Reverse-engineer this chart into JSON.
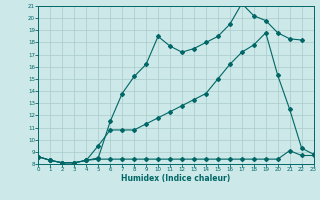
{
  "bg_color": "#cce8e8",
  "grid_color": "#aacccc",
  "line_color": "#006666",
  "xlabel": "Humidex (Indice chaleur)",
  "xlim": [
    0,
    23
  ],
  "ylim": [
    8,
    21
  ],
  "xticks": [
    0,
    1,
    2,
    3,
    4,
    5,
    6,
    7,
    8,
    9,
    10,
    11,
    12,
    13,
    14,
    15,
    16,
    17,
    18,
    19,
    20,
    21,
    22,
    23
  ],
  "yticks": [
    8,
    9,
    10,
    11,
    12,
    13,
    14,
    15,
    16,
    17,
    18,
    19,
    20,
    21
  ],
  "line1_x": [
    0,
    1,
    2,
    3,
    4,
    5,
    6,
    7,
    8,
    9,
    10,
    11,
    12,
    13,
    14,
    15,
    16,
    17,
    18,
    19,
    20,
    21,
    22
  ],
  "line1_y": [
    8.6,
    8.3,
    8.1,
    8.1,
    8.3,
    8.5,
    11.5,
    13.8,
    15.2,
    16.2,
    18.5,
    17.7,
    17.2,
    17.5,
    18.0,
    18.5,
    19.5,
    21.2,
    20.2,
    19.8,
    18.8,
    18.3,
    18.2
  ],
  "line2_x": [
    0,
    1,
    2,
    3,
    4,
    5,
    6,
    7,
    8,
    9,
    10,
    11,
    12,
    13,
    14,
    15,
    16,
    17,
    18,
    19,
    20,
    21,
    22,
    23
  ],
  "line2_y": [
    8.6,
    8.3,
    8.1,
    8.1,
    8.3,
    9.5,
    10.8,
    10.8,
    10.8,
    11.3,
    11.8,
    12.3,
    12.8,
    13.3,
    13.8,
    15.0,
    16.2,
    17.2,
    17.8,
    18.8,
    15.3,
    12.5,
    9.3,
    8.8
  ],
  "line3_x": [
    0,
    1,
    2,
    3,
    4,
    5,
    6,
    7,
    8,
    9,
    10,
    11,
    12,
    13,
    14,
    15,
    16,
    17,
    18,
    19,
    20,
    21,
    22,
    23
  ],
  "line3_y": [
    8.6,
    8.3,
    8.1,
    8.1,
    8.3,
    8.4,
    8.4,
    8.4,
    8.4,
    8.4,
    8.4,
    8.4,
    8.4,
    8.4,
    8.4,
    8.4,
    8.4,
    8.4,
    8.4,
    8.4,
    8.4,
    9.1,
    8.7,
    8.7
  ]
}
